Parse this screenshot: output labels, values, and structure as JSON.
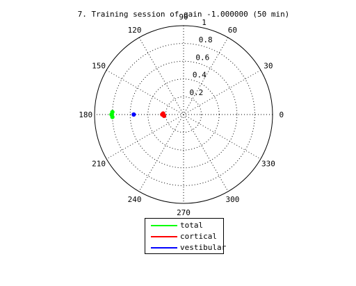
{
  "chart_data": {
    "type": "polar",
    "title": "7. Training session of gain -1.000000 (50 min)",
    "r_max": 1,
    "r_ticks": [
      0.2,
      0.4,
      0.6,
      0.8,
      1
    ],
    "r_tick_labels": [
      "0.2",
      "0.4",
      "0.6",
      "0.8",
      "1"
    ],
    "theta_ticks": [
      0,
      30,
      60,
      90,
      120,
      150,
      180,
      210,
      240,
      270,
      300,
      330
    ],
    "theta_tick_labels": [
      "0",
      "30",
      "60",
      "90",
      "120",
      "150",
      "180",
      "210",
      "240",
      "270",
      "300",
      "330"
    ],
    "grid": true,
    "legend_position": "bottom-center",
    "series": [
      {
        "name": "total",
        "color": "#00ff00",
        "points": [
          {
            "theta": 180,
            "r": 0.81
          },
          {
            "theta": 178,
            "r": 0.8
          },
          {
            "theta": 182,
            "r": 0.8
          }
        ]
      },
      {
        "name": "cortical",
        "color": "#ff0000",
        "points": [
          {
            "theta": 180,
            "r": 0.24
          },
          {
            "theta": 177,
            "r": 0.23
          },
          {
            "theta": 184,
            "r": 0.22
          }
        ]
      },
      {
        "name": "vestibular",
        "color": "#0000ff",
        "points": [
          {
            "theta": 180,
            "r": 0.56
          }
        ]
      }
    ]
  }
}
